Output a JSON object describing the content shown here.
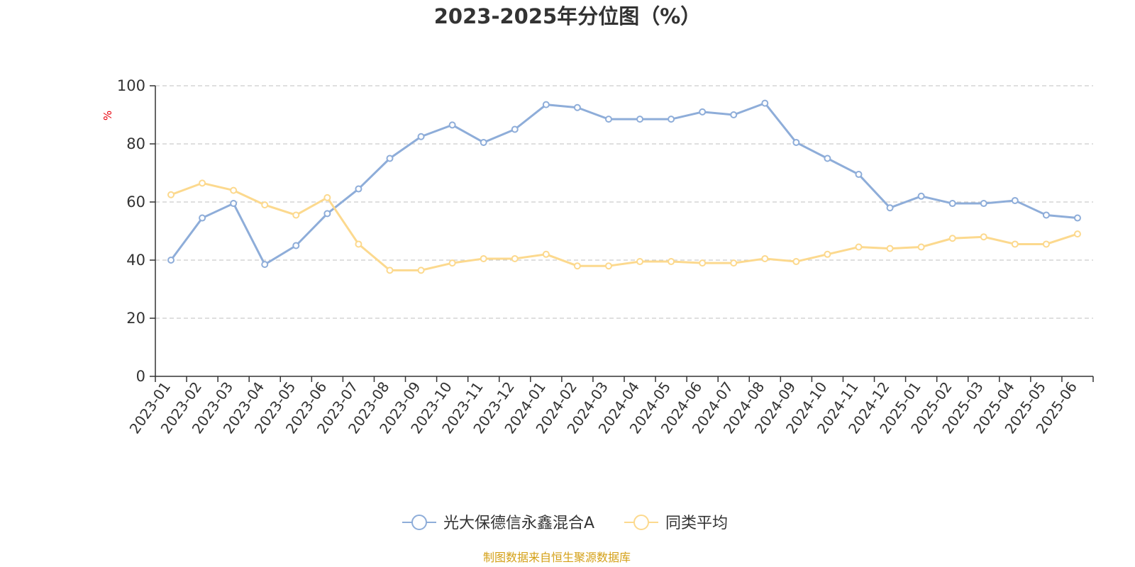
{
  "chart_data": {
    "type": "line",
    "title": "2023-2025年分位图（%）",
    "ylabel": "%",
    "ylim": [
      0,
      100
    ],
    "yticks": [
      0,
      20,
      40,
      60,
      80,
      100
    ],
    "grid": true,
    "legend_position": "bottom",
    "categories": [
      "2023-01",
      "2023-02",
      "2023-03",
      "2023-04",
      "2023-05",
      "2023-06",
      "2023-07",
      "2023-08",
      "2023-09",
      "2023-10",
      "2023-11",
      "2023-12",
      "2024-01",
      "2024-02",
      "2024-03",
      "2024-04",
      "2024-05",
      "2024-06",
      "2024-07",
      "2024-08",
      "2024-09",
      "2024-10",
      "2024-11",
      "2024-12",
      "2025-01",
      "2025-02",
      "2025-03",
      "2025-04",
      "2025-05",
      "2025-06"
    ],
    "series": [
      {
        "name": "光大保德信永鑫混合A",
        "color": "#8eadd9",
        "values": [
          40,
          54.5,
          59.5,
          38.5,
          45,
          56,
          64.5,
          75,
          82.5,
          86.5,
          80.5,
          85,
          93.5,
          92.5,
          88.5,
          88.5,
          88.5,
          91,
          90,
          94,
          80.5,
          75,
          69.5,
          58,
          62,
          59.5,
          59.5,
          60.5,
          55.5,
          54.5
        ]
      },
      {
        "name": "同类平均",
        "color": "#fcd98e",
        "values": [
          62.5,
          66.5,
          64,
          59,
          55.5,
          61.5,
          45.5,
          36.5,
          36.5,
          39,
          40.5,
          40.5,
          42,
          38,
          38,
          39.5,
          39.5,
          39,
          39,
          40.5,
          39.5,
          42,
          44.5,
          44,
          44.5,
          47.5,
          48,
          45.5,
          45.5,
          49
        ]
      }
    ],
    "source": "制图数据来自恒生聚源数据库",
    "colors": {
      "axis": "#333333",
      "grid": "#cccccc",
      "unit": "#e8000b",
      "source": "#d4a017"
    }
  }
}
